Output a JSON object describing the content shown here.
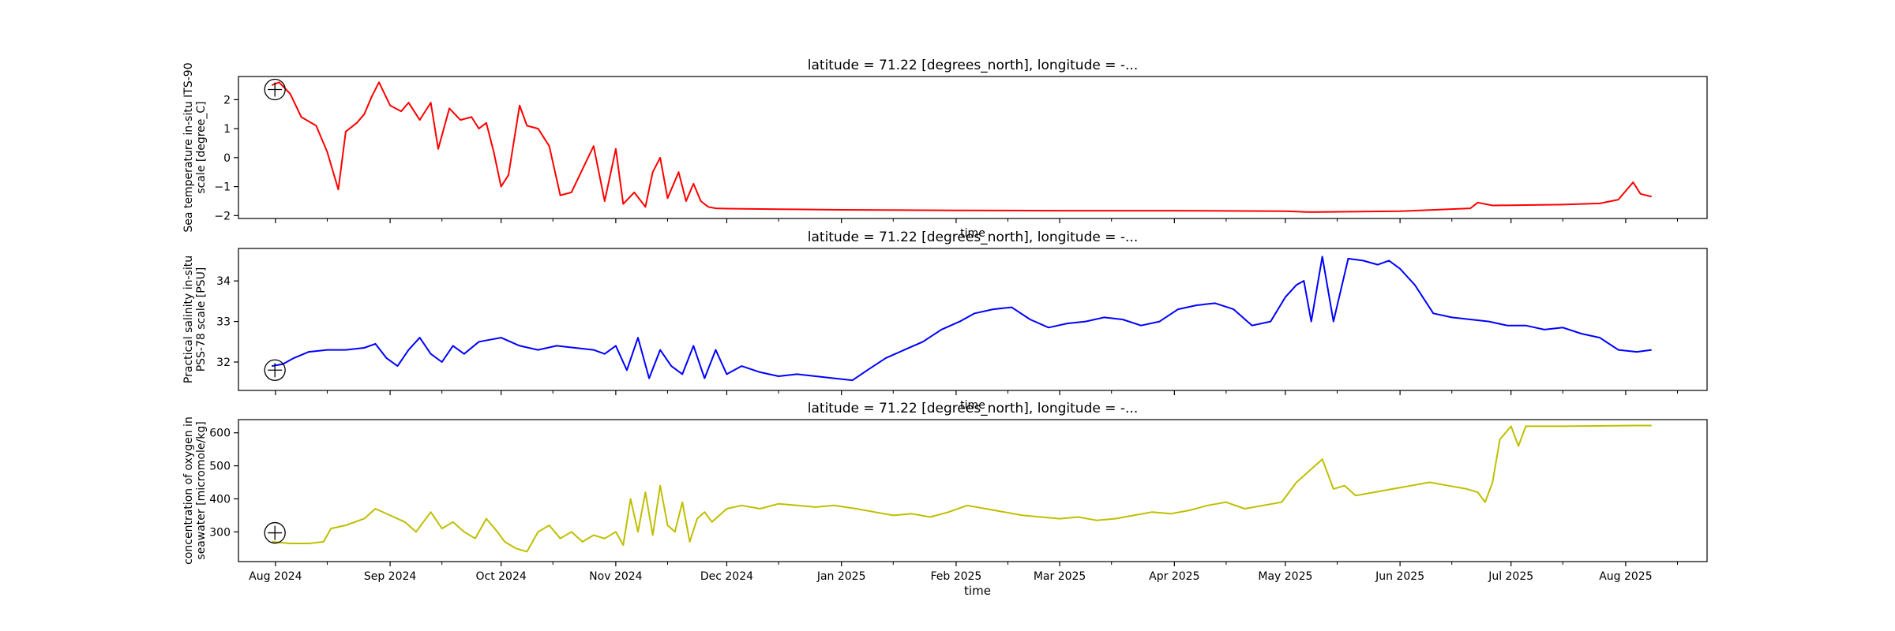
{
  "chart_data": [
    {
      "type": "line",
      "title": "latitude = 71.22 [degrees_north], longitude = -...",
      "xlabel": "time",
      "ylabel": [
        "Sea temperature in-situ ITS-90",
        "scale [degree_C]"
      ],
      "yticks": [
        2,
        1,
        0,
        -1,
        -2
      ],
      "ylim": [
        -2.1,
        2.8
      ],
      "color": "#ff0000",
      "marker_value": 2.35,
      "series": [
        {
          "x": [
            "2024-07-31",
            "2024-08-02",
            "2024-08-05",
            "2024-08-08",
            "2024-08-12",
            "2024-08-15",
            "2024-08-18",
            "2024-08-20",
            "2024-08-23",
            "2024-08-25",
            "2024-08-27",
            "2024-08-29",
            "2024-09-01",
            "2024-09-04",
            "2024-09-06",
            "2024-09-09",
            "2024-09-12",
            "2024-09-14",
            "2024-09-17",
            "2024-09-20",
            "2024-09-23",
            "2024-09-25",
            "2024-09-27",
            "2024-09-29",
            "2024-10-01",
            "2024-10-03",
            "2024-10-06",
            "2024-10-08",
            "2024-10-11",
            "2024-10-14",
            "2024-10-17",
            "2024-10-20",
            "2024-10-23",
            "2024-10-26",
            "2024-10-29",
            "2024-11-01",
            "2024-11-03",
            "2024-11-06",
            "2024-11-09",
            "2024-11-11",
            "2024-11-13",
            "2024-11-15",
            "2024-11-18",
            "2024-11-20",
            "2024-11-22",
            "2024-11-24",
            "2024-11-26",
            "2024-11-28",
            "2024-12-01",
            "2024-12-15",
            "2025-01-01",
            "2025-02-01",
            "2025-03-01",
            "2025-04-01",
            "2025-05-01",
            "2025-05-08",
            "2025-06-01",
            "2025-06-20",
            "2025-06-22",
            "2025-06-26",
            "2025-07-15",
            "2025-07-25",
            "2025-07-30",
            "2025-08-03",
            "2025-08-05",
            "2025-08-08"
          ],
          "y": [
            2.5,
            2.6,
            2.2,
            1.4,
            1.1,
            0.2,
            -1.1,
            0.9,
            1.2,
            1.5,
            2.1,
            2.6,
            1.8,
            1.6,
            1.9,
            1.3,
            1.9,
            0.3,
            1.7,
            1.3,
            1.4,
            1.0,
            1.2,
            0.2,
            -1.0,
            -0.6,
            1.8,
            1.1,
            1.0,
            0.4,
            -1.3,
            -1.2,
            -0.4,
            0.4,
            -1.5,
            0.3,
            -1.6,
            -1.2,
            -1.7,
            -0.5,
            0.0,
            -1.4,
            -0.5,
            -1.5,
            -0.9,
            -1.5,
            -1.7,
            -1.75,
            -1.76,
            -1.78,
            -1.8,
            -1.82,
            -1.83,
            -1.83,
            -1.85,
            -1.88,
            -1.85,
            -1.75,
            -1.55,
            -1.65,
            -1.62,
            -1.58,
            -1.45,
            -0.85,
            -1.25,
            -1.35
          ]
        }
      ]
    },
    {
      "type": "line",
      "title": "latitude = 71.22 [degrees_north], longitude = -...",
      "xlabel": "time",
      "ylabel": [
        "Practical salinity in-situ",
        "PSS-78 scale [PSU]"
      ],
      "yticks": [
        34,
        33,
        32
      ],
      "ylim": [
        31.3,
        34.8
      ],
      "color": "#0000ff",
      "marker_value": 31.8,
      "series": [
        {
          "x": [
            "2024-07-31",
            "2024-08-03",
            "2024-08-06",
            "2024-08-10",
            "2024-08-15",
            "2024-08-20",
            "2024-08-25",
            "2024-08-28",
            "2024-08-31",
            "2024-09-03",
            "2024-09-06",
            "2024-09-09",
            "2024-09-12",
            "2024-09-15",
            "2024-09-18",
            "2024-09-21",
            "2024-09-25",
            "2024-09-28",
            "2024-10-01",
            "2024-10-06",
            "2024-10-11",
            "2024-10-16",
            "2024-10-21",
            "2024-10-26",
            "2024-10-29",
            "2024-11-01",
            "2024-11-04",
            "2024-11-07",
            "2024-11-10",
            "2024-11-13",
            "2024-11-16",
            "2024-11-19",
            "2024-11-22",
            "2024-11-25",
            "2024-11-28",
            "2024-12-01",
            "2024-12-05",
            "2024-12-10",
            "2024-12-15",
            "2024-12-20",
            "2024-12-25",
            "2024-12-30",
            "2025-01-04",
            "2025-01-08",
            "2025-01-13",
            "2025-01-18",
            "2025-01-23",
            "2025-01-28",
            "2025-02-02",
            "2025-02-06",
            "2025-02-11",
            "2025-02-16",
            "2025-02-21",
            "2025-02-26",
            "2025-03-03",
            "2025-03-08",
            "2025-03-13",
            "2025-03-18",
            "2025-03-23",
            "2025-03-28",
            "2025-04-02",
            "2025-04-07",
            "2025-04-12",
            "2025-04-17",
            "2025-04-22",
            "2025-04-27",
            "2025-05-01",
            "2025-05-04",
            "2025-05-06",
            "2025-05-08",
            "2025-05-11",
            "2025-05-14",
            "2025-05-18",
            "2025-05-22",
            "2025-05-26",
            "2025-05-29",
            "2025-06-01",
            "2025-06-05",
            "2025-06-10",
            "2025-06-15",
            "2025-06-20",
            "2025-06-25",
            "2025-06-30",
            "2025-07-05",
            "2025-07-10",
            "2025-07-15",
            "2025-07-20",
            "2025-07-25",
            "2025-07-30",
            "2025-08-04",
            "2025-08-08"
          ],
          "y": [
            31.9,
            31.95,
            32.1,
            32.25,
            32.3,
            32.3,
            32.35,
            32.45,
            32.1,
            31.9,
            32.3,
            32.6,
            32.2,
            32.0,
            32.4,
            32.2,
            32.5,
            32.55,
            32.6,
            32.4,
            32.3,
            32.4,
            32.35,
            32.3,
            32.2,
            32.4,
            31.8,
            32.6,
            31.6,
            32.3,
            31.9,
            31.7,
            32.4,
            31.6,
            32.3,
            31.7,
            31.9,
            31.75,
            31.65,
            31.7,
            31.65,
            31.6,
            31.55,
            31.8,
            32.1,
            32.3,
            32.5,
            32.8,
            33.0,
            33.2,
            33.3,
            33.35,
            33.05,
            32.85,
            32.95,
            33.0,
            33.1,
            33.05,
            32.9,
            33.0,
            33.3,
            33.4,
            33.45,
            33.3,
            32.9,
            33.0,
            33.6,
            33.9,
            34.0,
            33.0,
            34.6,
            33.0,
            34.55,
            34.5,
            34.4,
            34.5,
            34.3,
            33.9,
            33.2,
            33.1,
            33.05,
            33.0,
            32.9,
            32.9,
            32.8,
            32.85,
            32.7,
            32.6,
            32.3,
            32.25,
            32.3
          ]
        }
      ]
    },
    {
      "type": "line",
      "title": "latitude = 71.22 [degrees_north], longitude = -...",
      "xlabel": "time",
      "ylabel": [
        "concentration of oxygen in",
        "seawater [micromole/kg]"
      ],
      "yticks": [
        600,
        500,
        400,
        300
      ],
      "ylim": [
        210,
        640
      ],
      "color": "#bfbf00",
      "marker_value": 297,
      "series": [
        {
          "x": [
            "2024-07-31",
            "2024-08-05",
            "2024-08-10",
            "2024-08-14",
            "2024-08-16",
            "2024-08-20",
            "2024-08-25",
            "2024-08-28",
            "2024-09-01",
            "2024-09-05",
            "2024-09-08",
            "2024-09-12",
            "2024-09-15",
            "2024-09-18",
            "2024-09-21",
            "2024-09-24",
            "2024-09-27",
            "2024-09-30",
            "2024-10-02",
            "2024-10-05",
            "2024-10-08",
            "2024-10-11",
            "2024-10-14",
            "2024-10-17",
            "2024-10-20",
            "2024-10-23",
            "2024-10-26",
            "2024-10-29",
            "2024-11-01",
            "2024-11-03",
            "2024-11-05",
            "2024-11-07",
            "2024-11-09",
            "2024-11-11",
            "2024-11-13",
            "2024-11-15",
            "2024-11-17",
            "2024-11-19",
            "2024-11-21",
            "2024-11-23",
            "2024-11-25",
            "2024-11-27",
            "2024-12-01",
            "2024-12-05",
            "2024-12-10",
            "2024-12-15",
            "2024-12-20",
            "2024-12-25",
            "2024-12-30",
            "2025-01-05",
            "2025-01-10",
            "2025-01-15",
            "2025-01-20",
            "2025-01-25",
            "2025-01-30",
            "2025-02-04",
            "2025-02-09",
            "2025-02-14",
            "2025-02-19",
            "2025-02-24",
            "2025-03-01",
            "2025-03-06",
            "2025-03-11",
            "2025-03-16",
            "2025-03-21",
            "2025-03-26",
            "2025-03-31",
            "2025-04-05",
            "2025-04-10",
            "2025-04-15",
            "2025-04-20",
            "2025-04-25",
            "2025-04-30",
            "2025-05-04",
            "2025-05-08",
            "2025-05-11",
            "2025-05-14",
            "2025-05-17",
            "2025-05-20",
            "2025-05-25",
            "2025-05-30",
            "2025-06-04",
            "2025-06-09",
            "2025-06-14",
            "2025-06-19",
            "2025-06-22",
            "2025-06-24",
            "2025-06-26",
            "2025-06-28",
            "2025-07-01",
            "2025-07-03",
            "2025-07-05",
            "2025-07-06",
            "2025-07-15",
            "2025-07-25",
            "2025-08-04",
            "2025-08-08"
          ],
          "y": [
            270,
            265,
            265,
            270,
            310,
            320,
            340,
            370,
            350,
            330,
            300,
            360,
            310,
            330,
            300,
            280,
            340,
            300,
            270,
            250,
            240,
            300,
            320,
            280,
            300,
            270,
            290,
            280,
            300,
            260,
            400,
            300,
            420,
            290,
            440,
            320,
            300,
            390,
            270,
            340,
            360,
            330,
            370,
            380,
            370,
            385,
            380,
            375,
            380,
            370,
            360,
            350,
            355,
            345,
            360,
            380,
            370,
            360,
            350,
            345,
            340,
            345,
            335,
            340,
            350,
            360,
            355,
            365,
            380,
            390,
            370,
            380,
            390,
            450,
            490,
            520,
            430,
            440,
            410,
            420,
            430,
            440,
            450,
            440,
            430,
            420,
            390,
            450,
            580,
            620,
            560,
            620,
            620,
            620,
            621,
            622,
            622
          ]
        }
      ]
    }
  ],
  "x_axis": {
    "range": [
      "2024-07-22",
      "2025-08-23"
    ],
    "tick_labels": [
      "Aug 2024",
      "Sep 2024",
      "Oct 2024",
      "Nov 2024",
      "Dec 2024",
      "Jan 2025",
      "Feb 2025",
      "Mar 2025",
      "Apr 2025",
      "May 2025",
      "Jun 2025",
      "Jul 2025",
      "Aug 2025"
    ],
    "tick_dates": [
      "2024-08-01",
      "2024-09-01",
      "2024-10-01",
      "2024-11-01",
      "2024-12-01",
      "2025-01-01",
      "2025-02-01",
      "2025-03-01",
      "2025-04-01",
      "2025-05-01",
      "2025-06-01",
      "2025-07-01",
      "2025-08-01"
    ],
    "minor_tick_dates": [
      "2024-07-15",
      "2024-08-15",
      "2024-09-15",
      "2024-10-15",
      "2024-11-15",
      "2024-12-15",
      "2025-01-15",
      "2025-02-15",
      "2025-03-15",
      "2025-04-15",
      "2025-05-15",
      "2025-06-15",
      "2025-07-15",
      "2025-08-15"
    ]
  },
  "grid": false,
  "legend": "none"
}
